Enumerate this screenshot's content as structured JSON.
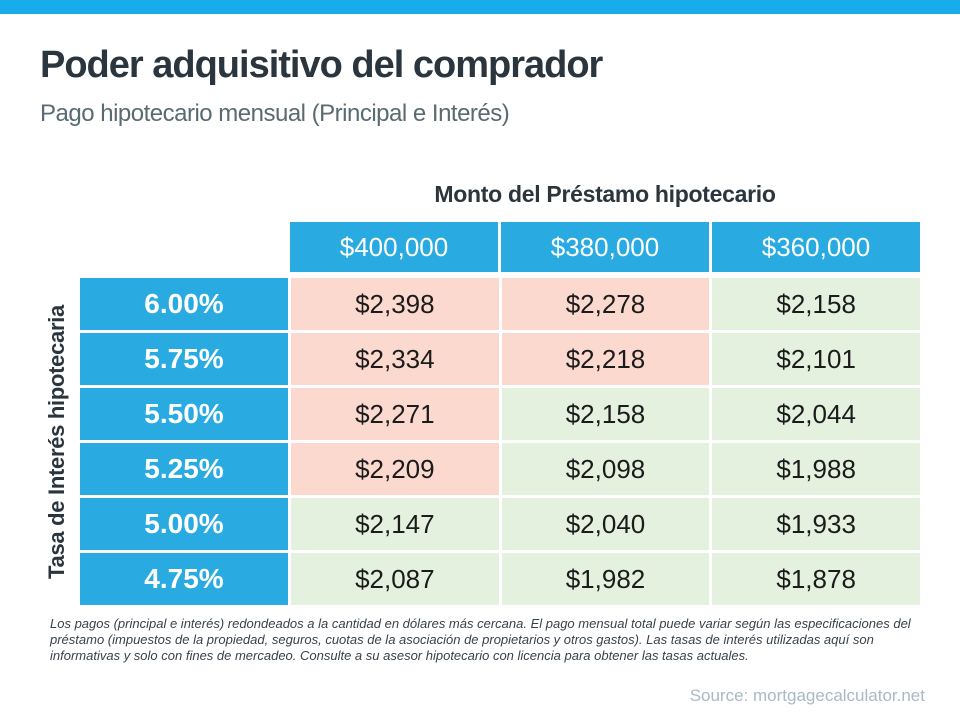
{
  "header": {
    "title": "Poder adquisitivo del comprador",
    "subtitle": "Pago hipotecario mensual (Principal e Interés)"
  },
  "table": {
    "column_axis_label": "Monto del Préstamo hipotecario",
    "row_axis_label": "Tasa de Interés hipotecaria",
    "column_headers": [
      "$400,000",
      "$380,000",
      "$360,000"
    ],
    "rows": [
      {
        "rate": "6.00%",
        "cells": [
          {
            "value": "$2,398",
            "tone": "high"
          },
          {
            "value": "$2,278",
            "tone": "high"
          },
          {
            "value": "$2,158",
            "tone": "low"
          }
        ]
      },
      {
        "rate": "5.75%",
        "cells": [
          {
            "value": "$2,334",
            "tone": "high"
          },
          {
            "value": "$2,218",
            "tone": "high"
          },
          {
            "value": "$2,101",
            "tone": "low"
          }
        ]
      },
      {
        "rate": "5.50%",
        "cells": [
          {
            "value": "$2,271",
            "tone": "high"
          },
          {
            "value": "$2,158",
            "tone": "low"
          },
          {
            "value": "$2,044",
            "tone": "low"
          }
        ]
      },
      {
        "rate": "5.25%",
        "cells": [
          {
            "value": "$2,209",
            "tone": "high"
          },
          {
            "value": "$2,098",
            "tone": "low"
          },
          {
            "value": "$1,988",
            "tone": "low"
          }
        ]
      },
      {
        "rate": "5.00%",
        "cells": [
          {
            "value": "$2,147",
            "tone": "low"
          },
          {
            "value": "$2,040",
            "tone": "low"
          },
          {
            "value": "$1,933",
            "tone": "low"
          }
        ]
      },
      {
        "rate": "4.75%",
        "cells": [
          {
            "value": "$2,087",
            "tone": "low"
          },
          {
            "value": "$1,982",
            "tone": "low"
          },
          {
            "value": "$1,878",
            "tone": "low"
          }
        ]
      }
    ]
  },
  "chart_data": {
    "type": "table",
    "title": "Poder adquisitivo del comprador",
    "subtitle": "Pago hipotecario mensual (Principal e Interés)",
    "column_axis": "Monto del Préstamo hipotecario",
    "row_axis": "Tasa de Interés hipotecaria",
    "columns": [
      "$400,000",
      "$380,000",
      "$360,000"
    ],
    "row_labels": [
      "6.00%",
      "5.75%",
      "5.50%",
      "5.25%",
      "5.00%",
      "4.75%"
    ],
    "values": [
      [
        2398,
        2278,
        2158
      ],
      [
        2334,
        2218,
        2101
      ],
      [
        2271,
        2158,
        2044
      ],
      [
        2209,
        2098,
        1988
      ],
      [
        2147,
        2040,
        1933
      ],
      [
        2087,
        1982,
        1878
      ]
    ],
    "cell_tones": [
      [
        "pink",
        "pink",
        "green"
      ],
      [
        "pink",
        "pink",
        "green"
      ],
      [
        "pink",
        "green",
        "green"
      ],
      [
        "pink",
        "green",
        "green"
      ],
      [
        "green",
        "green",
        "green"
      ],
      [
        "green",
        "green",
        "green"
      ]
    ]
  },
  "footnote": "Los pagos (principal e interés) redondeados a la cantidad en dólares más cercana. El pago mensual total puede variar según las especificaciones del préstamo (impuestos de la propiedad, seguros, cuotas de la asociación de propietarios y otros gastos). Las tasas de interés utilizadas aquí son informativas y solo con fines de mercadeo. Consulte a su asesor hipotecario con licencia para obtener las tasas actuales.",
  "source": "Source: mortgagecalculator.net",
  "colors": {
    "accent_bar": "#18ACEC",
    "header_cell_blue": "#29ABE2",
    "cell_pink": "#FBD9CE",
    "cell_green": "#E4F1DE",
    "title_text": "#2A353E",
    "subtitle_text": "#5A6A72",
    "source_text": "#A9BAC4"
  }
}
